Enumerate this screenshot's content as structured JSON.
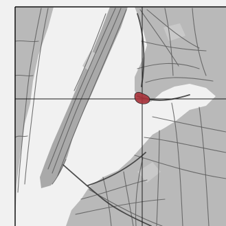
{
  "map": {
    "style": "grayscale street map",
    "colors": {
      "background": "#ffffff",
      "land": "#b9b9b9",
      "land_dark": "#a9a9a9",
      "water": "#f1f1f1",
      "park": "#c9c9c9",
      "road": "#5a5a5a",
      "road_major": "#3c3c3c",
      "crosshair": "#1a1a1a",
      "marker_fill": "#a8323a",
      "frame": "#111111"
    },
    "icons": {
      "marker": "location-blob-icon",
      "crosshair": "crosshair-icon"
    }
  }
}
